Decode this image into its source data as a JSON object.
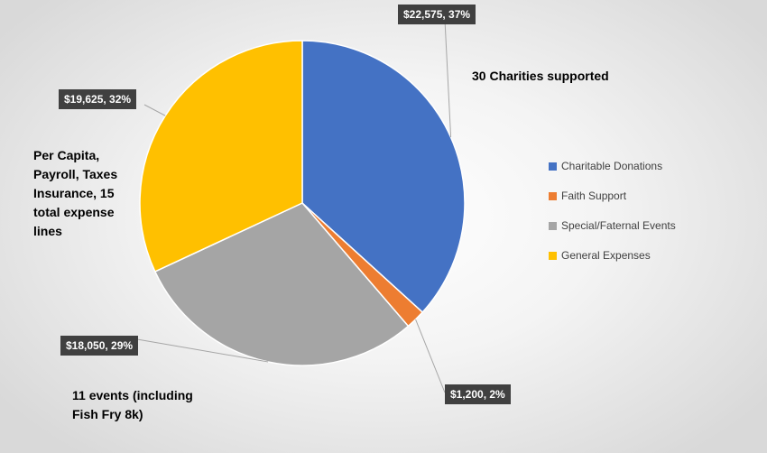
{
  "chart_data": {
    "type": "pie",
    "slices": [
      {
        "name": "Charitable Donations",
        "value": 22575,
        "percent": 37,
        "label": "$22,575, 37%",
        "color": "#4472C4"
      },
      {
        "name": "Faith Support",
        "value": 1200,
        "percent": 2,
        "label": "$1,200, 2%",
        "color": "#ED7D31"
      },
      {
        "name": "Special/Faternal Events",
        "value": 18050,
        "percent": 29,
        "label": "$18,050, 29%",
        "color": "#A5A5A5"
      },
      {
        "name": "General Expenses",
        "value": 19625,
        "percent": 32,
        "label": "$19,625, 32%",
        "color": "#FFC000"
      }
    ],
    "legend_position": "right",
    "annotations": {
      "charities": "30 Charities supported",
      "general": [
        "Per Capita,",
        "Payroll, Taxes",
        "Insurance, 15",
        "total expense",
        "lines"
      ],
      "events": [
        "11 events (including",
        "Fish Fry 8k)"
      ]
    }
  }
}
